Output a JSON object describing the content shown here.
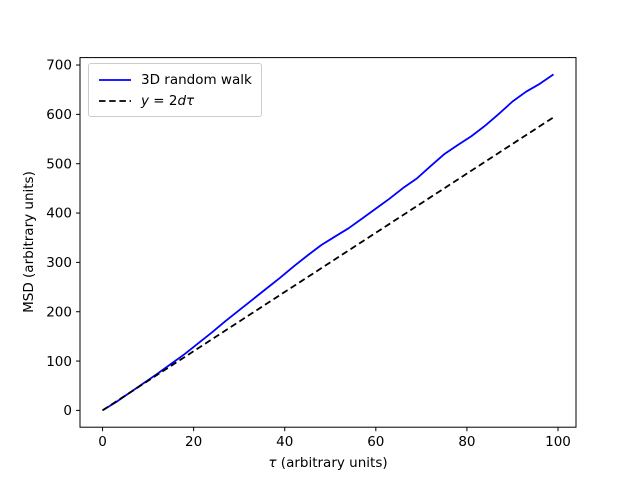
{
  "figure": {
    "background": "#ffffff",
    "spine_color": "#000000",
    "tick_color": "#000000"
  },
  "chart_data": {
    "type": "line",
    "title": "",
    "xlabel": "τ (arbitrary units)",
    "xlabel_parts": {
      "tau": "τ",
      "rest": " (arbitrary units)"
    },
    "ylabel": "MSD (arbitrary units)",
    "xlim": [
      -4.95,
      103.95
    ],
    "ylim": [
      -34.05,
      715.05
    ],
    "xticks": [
      0,
      20,
      40,
      60,
      80,
      100
    ],
    "yticks": [
      0,
      100,
      200,
      300,
      400,
      500,
      600,
      700
    ],
    "grid": false,
    "legend": {
      "position": "upper left",
      "items": [
        {
          "label": "3D random walk",
          "color": "#0000ff",
          "linestyle": "solid"
        },
        {
          "label": "y = 2dτ",
          "label_parts": {
            "y": "y",
            "eq": " = 2",
            "dtau": "dτ"
          },
          "color": "#000000",
          "linestyle": "dashed"
        }
      ]
    },
    "series": [
      {
        "name": "3D random walk",
        "color": "#0000ff",
        "linestyle": "solid",
        "linewidth": 1.8,
        "x": [
          0,
          3,
          6,
          9,
          12,
          15,
          18,
          21,
          24,
          27,
          30,
          33,
          36,
          39,
          42,
          45,
          48,
          51,
          54,
          57,
          60,
          63,
          66,
          69,
          72,
          75,
          78,
          81,
          84,
          87,
          90,
          93,
          96,
          99
        ],
        "y": [
          0,
          17,
          36,
          55,
          74,
          94,
          114,
          136,
          158,
          181,
          203,
          225,
          247,
          269,
          292,
          314,
          335,
          352,
          369,
          389,
          409,
          429,
          451,
          470,
          495,
          519,
          538,
          556,
          577,
          601,
          626,
          646,
          662,
          681
        ]
      },
      {
        "name": "y = 2dτ",
        "color": "#000000",
        "linestyle": "dashed",
        "linewidth": 1.8,
        "x": [
          0,
          99
        ],
        "y": [
          0,
          594
        ]
      }
    ]
  }
}
